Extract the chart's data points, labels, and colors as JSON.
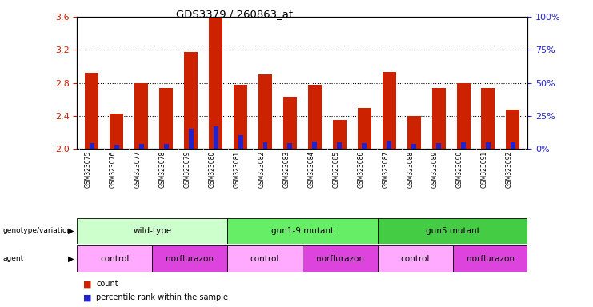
{
  "title": "GDS3379 / 260863_at",
  "samples": [
    "GSM323075",
    "GSM323076",
    "GSM323077",
    "GSM323078",
    "GSM323079",
    "GSM323080",
    "GSM323081",
    "GSM323082",
    "GSM323083",
    "GSM323084",
    "GSM323085",
    "GSM323086",
    "GSM323087",
    "GSM323088",
    "GSM323089",
    "GSM323090",
    "GSM323091",
    "GSM323092"
  ],
  "count_values": [
    2.92,
    2.43,
    2.8,
    2.74,
    3.17,
    3.6,
    2.78,
    2.9,
    2.63,
    2.78,
    2.35,
    2.5,
    2.93,
    2.4,
    2.74,
    2.8,
    2.74,
    2.48
  ],
  "percentile_values": [
    0.07,
    0.05,
    0.06,
    0.06,
    0.24,
    0.27,
    0.17,
    0.08,
    0.07,
    0.09,
    0.08,
    0.07,
    0.1,
    0.06,
    0.07,
    0.08,
    0.08,
    0.08
  ],
  "ymin": 2.0,
  "ymax": 3.6,
  "yticks_left": [
    2.0,
    2.4,
    2.8,
    3.2,
    3.6
  ],
  "yticks_right": [
    0,
    25,
    50,
    75,
    100
  ],
  "bar_color": "#cc2200",
  "percentile_color": "#2222cc",
  "bar_width": 0.55,
  "genotype_groups": [
    {
      "label": "wild-type",
      "start": 0,
      "end": 6,
      "color": "#ccffcc"
    },
    {
      "label": "gun1-9 mutant",
      "start": 6,
      "end": 12,
      "color": "#66ee66"
    },
    {
      "label": "gun5 mutant",
      "start": 12,
      "end": 18,
      "color": "#44cc44"
    }
  ],
  "agent_groups": [
    {
      "label": "control",
      "start": 0,
      "end": 3,
      "color": "#ffaaff"
    },
    {
      "label": "norflurazon",
      "start": 3,
      "end": 6,
      "color": "#dd44dd"
    },
    {
      "label": "control",
      "start": 6,
      "end": 9,
      "color": "#ffaaff"
    },
    {
      "label": "norflurazon",
      "start": 9,
      "end": 12,
      "color": "#dd44dd"
    },
    {
      "label": "control",
      "start": 12,
      "end": 15,
      "color": "#ffaaff"
    },
    {
      "label": "norflurazon",
      "start": 15,
      "end": 18,
      "color": "#dd44dd"
    }
  ],
  "ylabel_left_color": "#cc2200",
  "ylabel_right_color": "#2222cc",
  "background_color": "#ffffff",
  "tick_area_color": "#cccccc",
  "legend_color_count": "#cc2200",
  "legend_color_pct": "#2222cc"
}
